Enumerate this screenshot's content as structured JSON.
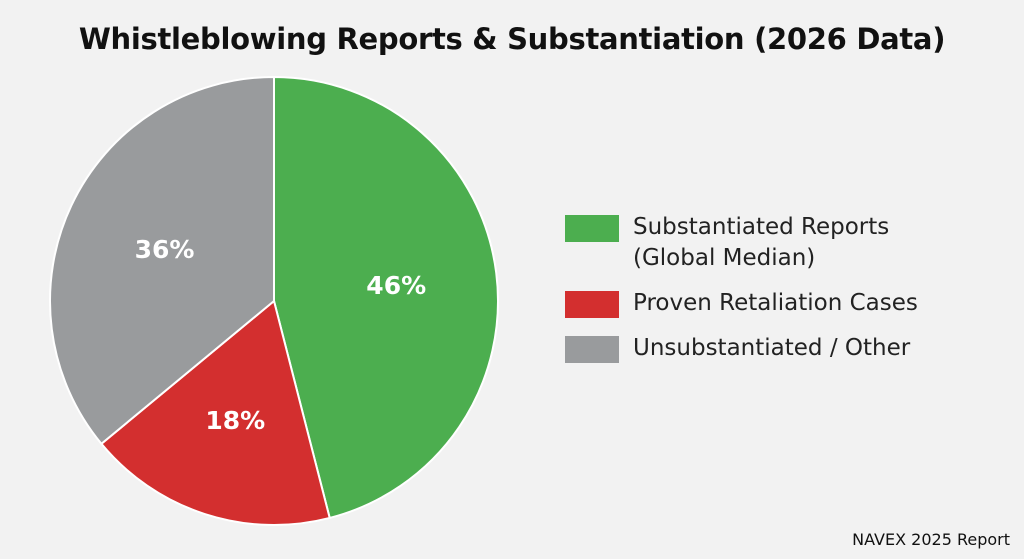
{
  "chart_data": {
    "type": "pie",
    "title": "Whistleblowing Reports & Substantiation (2026 Data)",
    "slices": [
      {
        "label": "Substantiated Reports (Global Median)",
        "value": 46,
        "display": "46%",
        "color": "#4cae4f"
      },
      {
        "label": "Proven Retaliation Cases",
        "value": 18,
        "display": "18%",
        "color": "#d32f2f"
      },
      {
        "label": "Unsubstantiated / Other",
        "value": 36,
        "display": "36%",
        "color": "#999b9d"
      }
    ],
    "legend": [
      {
        "lines": [
          "Substantiated Reports",
          "(Global Median)"
        ],
        "color": "#4cae4f"
      },
      {
        "lines": [
          "Proven Retaliation Cases"
        ],
        "color": "#d32f2f"
      },
      {
        "lines": [
          "Unsubstantiated / Other"
        ],
        "color": "#999b9d"
      }
    ],
    "legend_position": "right",
    "source": "NAVEX 2025 Report"
  }
}
